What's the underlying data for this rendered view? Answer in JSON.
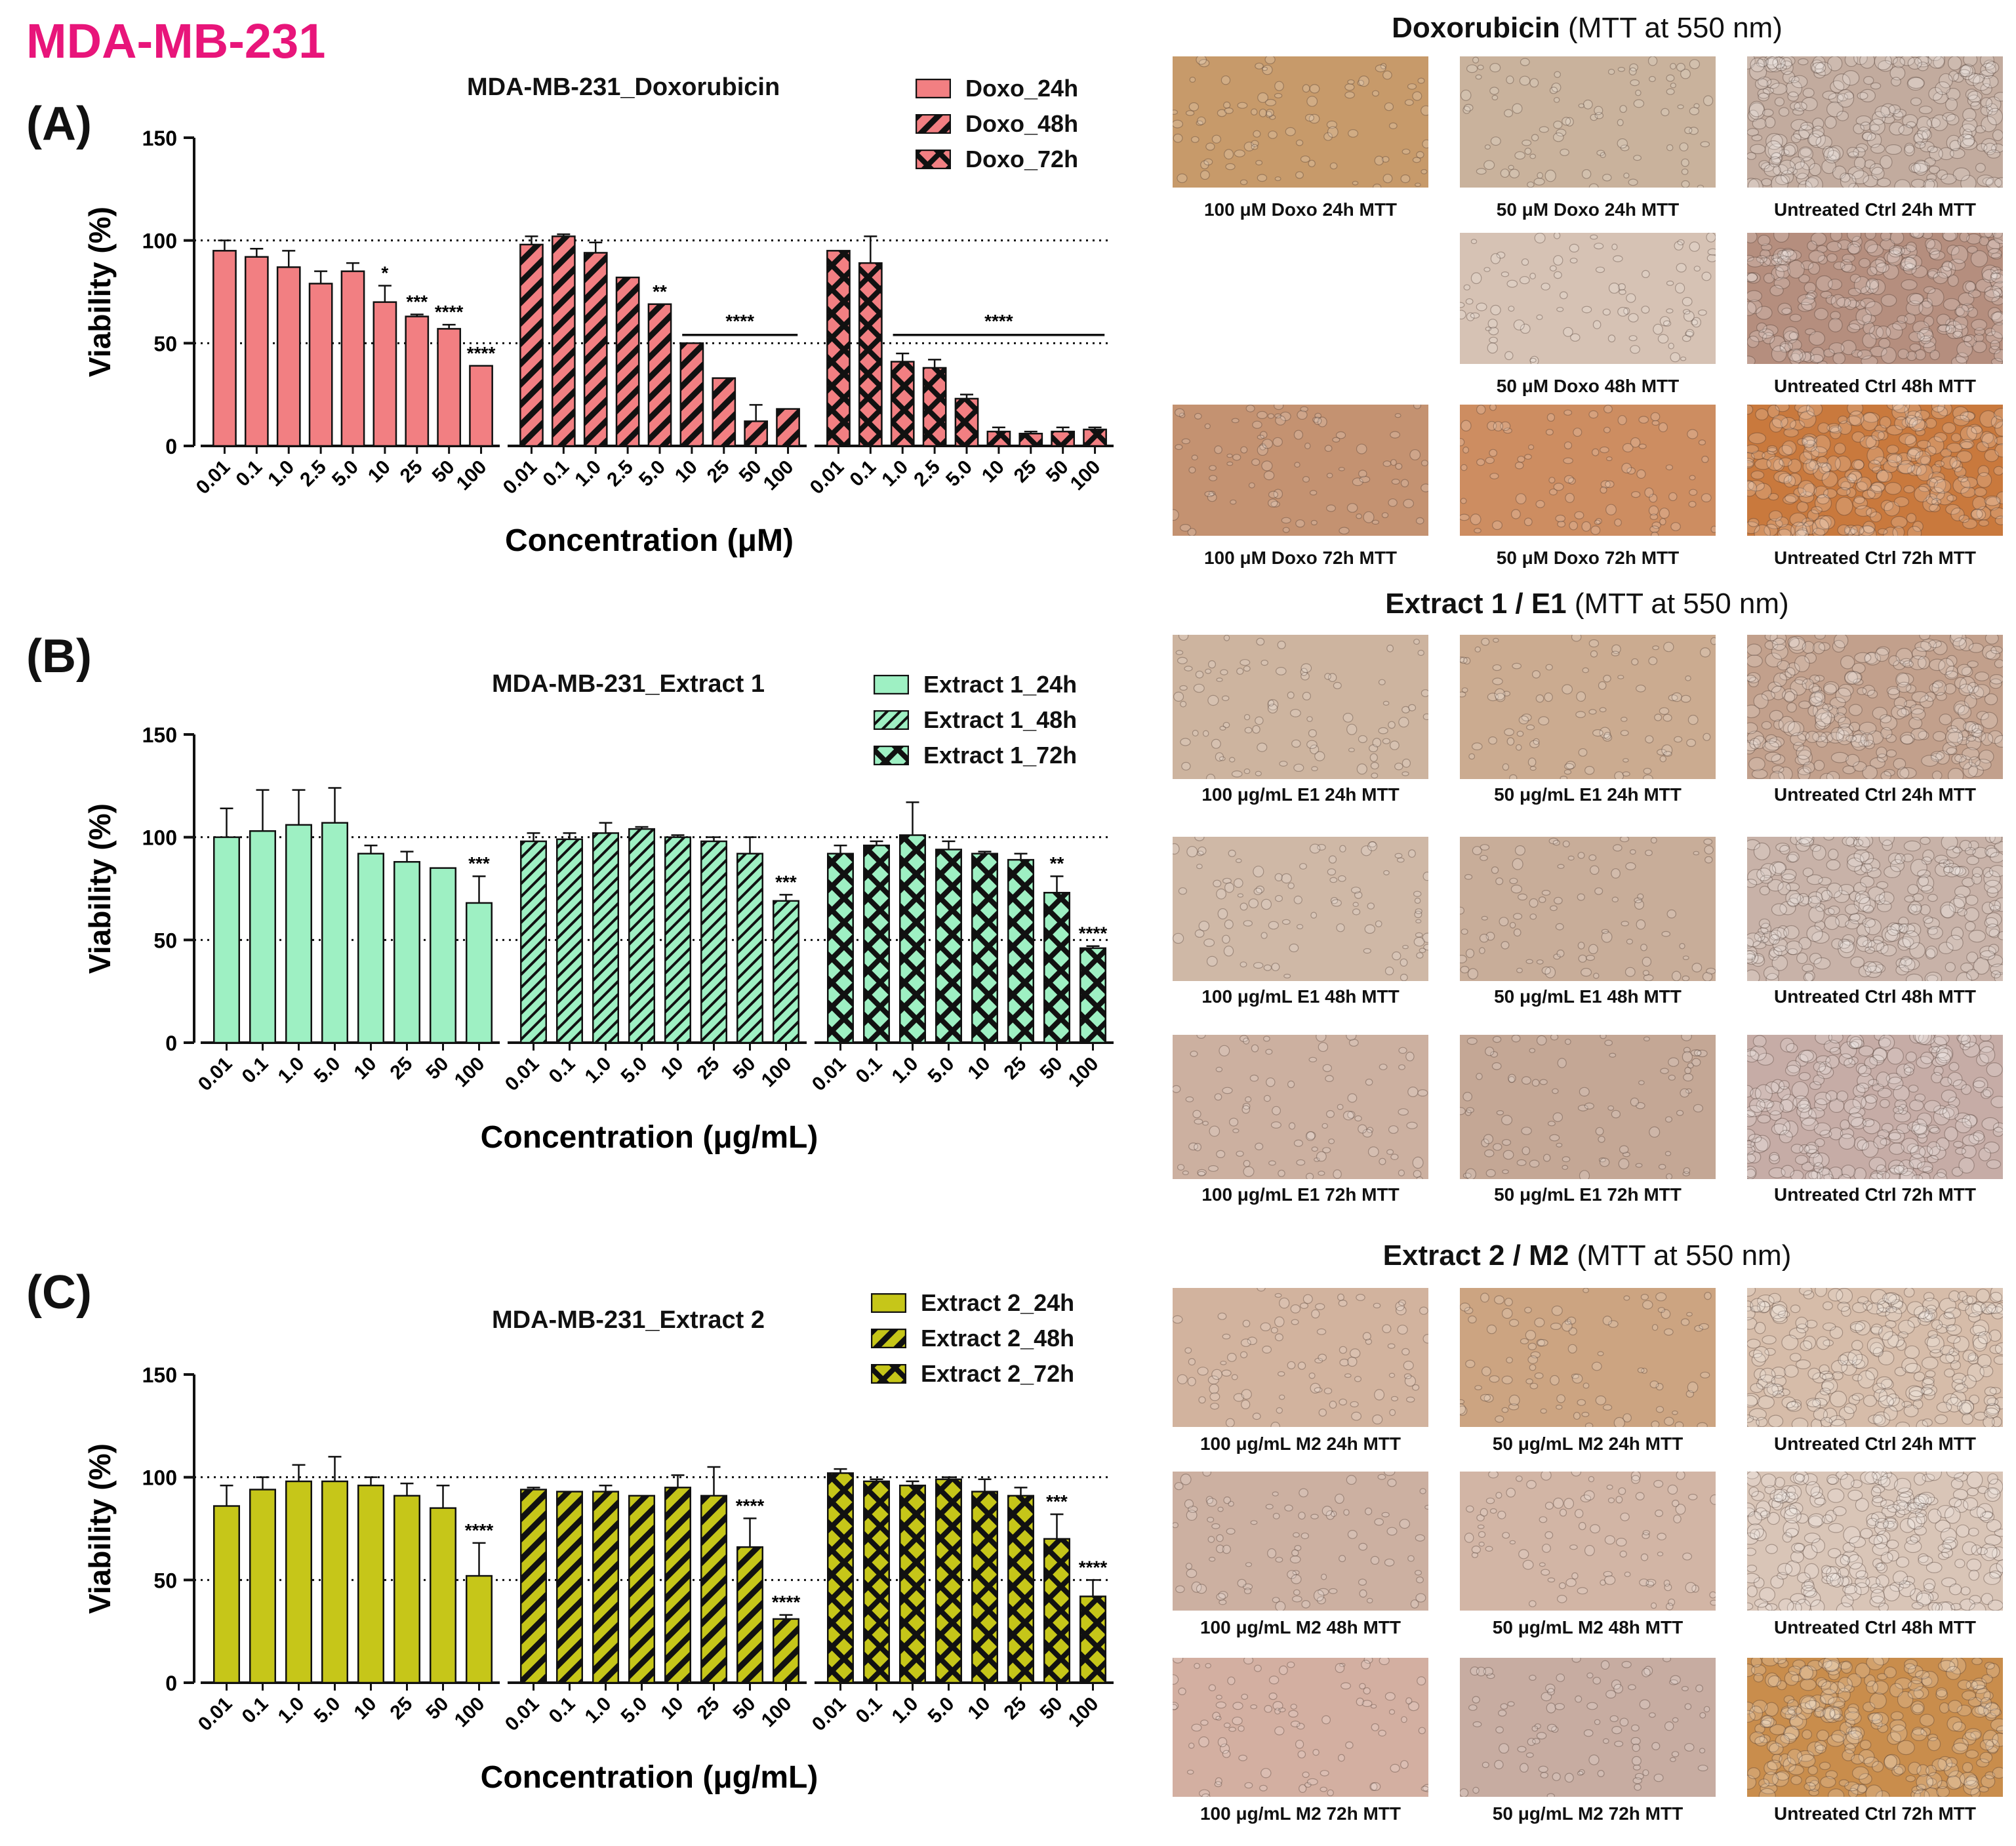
{
  "cell_line": "MDA-MB-231",
  "colors": {
    "title": "#e8157a",
    "doxo": "#f27f82",
    "extract1": "#9ef0c3",
    "extract2": "#c6c619",
    "ink": "#111111"
  },
  "panels": [
    {
      "letter": "(A)",
      "title": "MDA-MB-231_Doxorubicin",
      "legend": [
        "Doxo_24h",
        "Doxo_48h",
        "Doxo_72h"
      ]
    },
    {
      "letter": "(B)",
      "title": "MDA-MB-231_Extract 1",
      "legend": [
        "Extract 1_24h",
        "Extract 1_48h",
        "Extract 1_72h"
      ]
    },
    {
      "letter": "(C)",
      "title": "MDA-MB-231_Extract 2",
      "legend": [
        "Extract 2_24h",
        "Extract 2_48h",
        "Extract 2_72h"
      ]
    }
  ],
  "chart_data": [
    {
      "type": "bar",
      "title": "MDA-MB-231_Doxorubicin",
      "xlabel": "Concentration (μM)",
      "ylabel": "Viability (%)",
      "ylim": [
        0,
        150
      ],
      "yticks": [
        "0",
        "50",
        "100",
        "150"
      ],
      "reference_lines": [
        50,
        100
      ],
      "groups": [
        {
          "name": "Doxo_24h",
          "pattern": "solid",
          "categories": [
            "0.01",
            "0.1",
            "1.0",
            "2.5",
            "5.0",
            "10",
            "25",
            "50",
            "100"
          ],
          "values": [
            95,
            92,
            87,
            79,
            85,
            70,
            63,
            57,
            39
          ],
          "errors": [
            5,
            4,
            8,
            6,
            4,
            8,
            1,
            2,
            0
          ],
          "significance": [
            "",
            "",
            "",
            "",
            "",
            "*",
            "***",
            "****",
            "****"
          ]
        },
        {
          "name": "Doxo_48h",
          "pattern": "diagonal",
          "categories": [
            "0.01",
            "0.1",
            "1.0",
            "2.5",
            "5.0",
            "10",
            "25",
            "50",
            "100"
          ],
          "values": [
            98,
            102,
            94,
            82,
            69,
            50,
            33,
            12,
            18
          ],
          "errors": [
            4,
            1,
            5,
            0,
            0,
            0,
            0,
            8,
            0
          ],
          "significance": [
            "",
            "",
            "",
            "",
            "**",
            "",
            "",
            "",
            ""
          ],
          "bracket": {
            "from": 5,
            "to": 8,
            "label": "****"
          }
        },
        {
          "name": "Doxo_72h",
          "pattern": "cross",
          "categories": [
            "0.01",
            "0.1",
            "1.0",
            "2.5",
            "5.0",
            "10",
            "25",
            "50",
            "100"
          ],
          "values": [
            95,
            89,
            41,
            38,
            23,
            7,
            6,
            7,
            8
          ],
          "errors": [
            0,
            13,
            4,
            4,
            2,
            2,
            1,
            2,
            1
          ],
          "significance": [
            "",
            "",
            "",
            "",
            "",
            "",
            "",
            "",
            ""
          ],
          "bracket": {
            "from": 2,
            "to": 8,
            "label": "****"
          }
        }
      ]
    },
    {
      "type": "bar",
      "title": "MDA-MB-231_Extract 1",
      "xlabel": "Concentration (μg/mL)",
      "ylabel": "Viability (%)",
      "ylim": [
        0,
        150
      ],
      "yticks": [
        "0",
        "50",
        "100",
        "150"
      ],
      "reference_lines": [
        50,
        100
      ],
      "groups": [
        {
          "name": "Extract 1_24h",
          "pattern": "solid",
          "categories": [
            "0.01",
            "0.1",
            "1.0",
            "5.0",
            "10",
            "25",
            "50",
            "100"
          ],
          "values": [
            100,
            103,
            106,
            107,
            92,
            88,
            85,
            68
          ],
          "errors": [
            14,
            20,
            17,
            17,
            4,
            5,
            0,
            13
          ],
          "significance": [
            "",
            "",
            "",
            "",
            "",
            "",
            "",
            "***"
          ]
        },
        {
          "name": "Extract 1_48h",
          "pattern": "diagonal",
          "categories": [
            "0.01",
            "0.1",
            "1.0",
            "5.0",
            "10",
            "25",
            "50",
            "100"
          ],
          "values": [
            98,
            99,
            102,
            104,
            100,
            98,
            92,
            69
          ],
          "errors": [
            4,
            3,
            5,
            1,
            1,
            2,
            8,
            3
          ],
          "significance": [
            "",
            "",
            "",
            "",
            "",
            "",
            "",
            "***"
          ]
        },
        {
          "name": "Extract 1_72h",
          "pattern": "cross",
          "categories": [
            "0.01",
            "0.1",
            "1.0",
            "5.0",
            "10",
            "25",
            "50",
            "100"
          ],
          "values": [
            92,
            96,
            101,
            94,
            92,
            89,
            73,
            46
          ],
          "errors": [
            4,
            2,
            16,
            4,
            1,
            3,
            8,
            1
          ],
          "significance": [
            "",
            "",
            "",
            "",
            "",
            "",
            "**",
            "****"
          ]
        }
      ]
    },
    {
      "type": "bar",
      "title": "MDA-MB-231_Extract 2",
      "xlabel": "Concentration (μg/mL)",
      "ylabel": "Viability (%)",
      "ylim": [
        0,
        150
      ],
      "yticks": [
        "0",
        "50",
        "100",
        "150"
      ],
      "reference_lines": [
        50,
        100
      ],
      "groups": [
        {
          "name": "Extract 2_24h",
          "pattern": "solid",
          "categories": [
            "0.01",
            "0.1",
            "1.0",
            "5.0",
            "10",
            "25",
            "50",
            "100"
          ],
          "values": [
            86,
            94,
            98,
            98,
            96,
            91,
            85,
            52
          ],
          "errors": [
            10,
            6,
            8,
            12,
            4,
            6,
            11,
            16
          ],
          "significance": [
            "",
            "",
            "",
            "",
            "",
            "",
            "",
            "****"
          ]
        },
        {
          "name": "Extract 2_48h",
          "pattern": "diagonal",
          "categories": [
            "0.01",
            "0.1",
            "1.0",
            "5.0",
            "10",
            "25",
            "50",
            "100"
          ],
          "values": [
            94,
            93,
            93,
            91,
            95,
            91,
            66,
            31
          ],
          "errors": [
            1,
            0,
            3,
            0,
            6,
            14,
            14,
            2
          ],
          "significance": [
            "",
            "",
            "",
            "",
            "",
            "",
            "****",
            "****"
          ]
        },
        {
          "name": "Extract 2_72h",
          "pattern": "cross",
          "categories": [
            "0.01",
            "0.1",
            "1.0",
            "5.0",
            "10",
            "25",
            "50",
            "100"
          ],
          "values": [
            102,
            98,
            96,
            99,
            93,
            91,
            70,
            42
          ],
          "errors": [
            2,
            1,
            2,
            1,
            6,
            4,
            12,
            8
          ],
          "significance": [
            "",
            "",
            "",
            "",
            "",
            "",
            "***",
            "****"
          ]
        }
      ]
    }
  ],
  "micrographs": [
    {
      "title_bold": "Doxorubicin",
      "title_rest": " (MTT at 550 nm)",
      "images": [
        {
          "caption": "100 μM Doxo 24h MTT",
          "color": "#c79a6a"
        },
        {
          "caption": "50 μM Doxo 24h MTT",
          "color": "#c9b29c"
        },
        {
          "caption": "Untreated Ctrl 24h MTT",
          "color": "#c2ab9e"
        },
        {
          "caption": "",
          "color": ""
        },
        {
          "caption": "50 μM Doxo 48h MTT",
          "color": "#d6c2b4"
        },
        {
          "caption": "Untreated Ctrl 48h MTT",
          "color": "#b58e7e"
        },
        {
          "caption": "100 μM Doxo 72h MTT",
          "color": "#c49271"
        },
        {
          "caption": "50 μM Doxo 72h MTT",
          "color": "#cd8d61"
        },
        {
          "caption": "Untreated Ctrl 72h MTT",
          "color": "#c9793d"
        }
      ]
    },
    {
      "title_bold": "Extract 1 / E1",
      "title_rest": " (MTT at 550 nm)",
      "images": [
        {
          "caption": "100 μg/mL E1 24h MTT",
          "color": "#cdb49f"
        },
        {
          "caption": "50 μg/mL E1 24h MTT",
          "color": "#cbab90"
        },
        {
          "caption": "Untreated Ctrl 24h MTT",
          "color": "#c2a08c"
        },
        {
          "caption": "100 μg/mL E1 48h MTT",
          "color": "#cfb8a6"
        },
        {
          "caption": "50 μg/mL E1 48h MTT",
          "color": "#c8ad99"
        },
        {
          "caption": "Untreated Ctrl 48h MTT",
          "color": "#c8b2a8"
        },
        {
          "caption": "100 μg/mL E1 72h MTT",
          "color": "#ccb0a0"
        },
        {
          "caption": "50 μg/mL E1 72h MTT",
          "color": "#c4a795"
        },
        {
          "caption": "Untreated Ctrl 72h MTT",
          "color": "#c6aca6"
        }
      ]
    },
    {
      "title_bold": "Extract 2 / M2",
      "title_rest": " (MTT at 550 nm)",
      "images": [
        {
          "caption": "100 μg/mL M2 24h MTT",
          "color": "#d2b39e"
        },
        {
          "caption": "50 μg/mL M2 24h MTT",
          "color": "#cca481"
        },
        {
          "caption": "Untreated Ctrl 24h MTT",
          "color": "#d6bca9"
        },
        {
          "caption": "100 μg/mL M2 48h MTT",
          "color": "#ccb0a1"
        },
        {
          "caption": "50 μg/mL M2 48h MTT",
          "color": "#d2b5a5"
        },
        {
          "caption": "Untreated Ctrl 48h MTT",
          "color": "#d9c5b7"
        },
        {
          "caption": "100 μg/mL M2 72h MTT",
          "color": "#d3afa1"
        },
        {
          "caption": "50 μg/mL M2 72h MTT",
          "color": "#c7aca1"
        },
        {
          "caption": "Untreated Ctrl 72h MTT",
          "color": "#c98d4c"
        }
      ]
    }
  ]
}
